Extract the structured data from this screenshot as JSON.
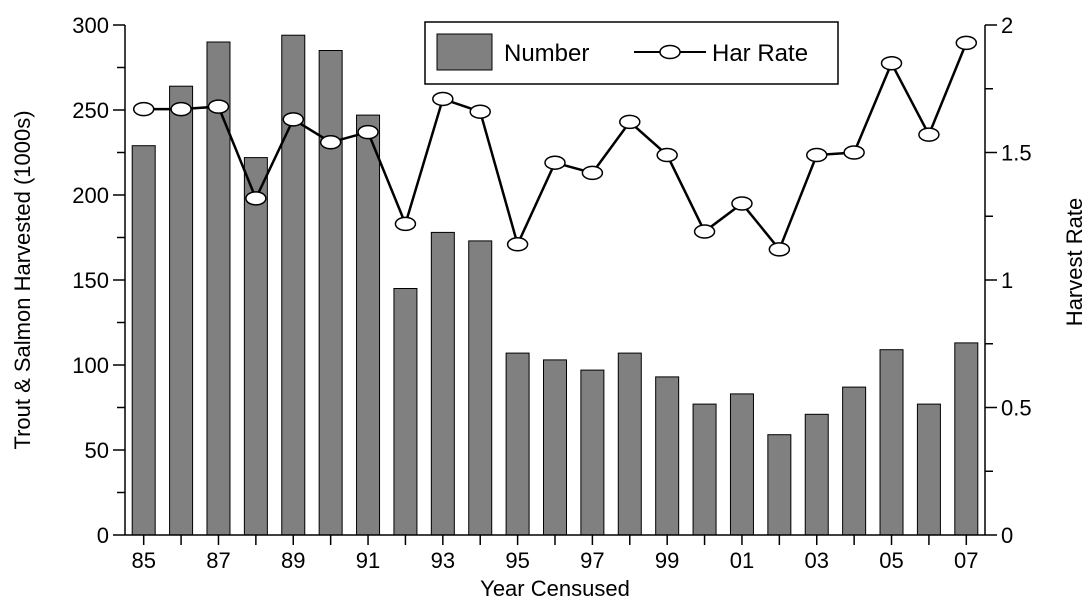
{
  "chart_data": {
    "type": "bar",
    "xlabel": "Year Censused",
    "ylabel": "Trout & Salmon Harvested (1000s)",
    "y2label": "Harvest Rate",
    "ylim": [
      0,
      300
    ],
    "y2lim": [
      0,
      2
    ],
    "yticks": [
      "0",
      "50",
      "100",
      "150",
      "200",
      "250",
      "300"
    ],
    "y2ticks": [
      "0",
      "0.5",
      "1",
      "1.5",
      "2"
    ],
    "categories": [
      "85",
      "86",
      "87",
      "88",
      "89",
      "90",
      "91",
      "92",
      "93",
      "94",
      "95",
      "96",
      "97",
      "98",
      "99",
      "00",
      "01",
      "02",
      "03",
      "04",
      "05",
      "06",
      "07"
    ],
    "xtick_labels": [
      "85",
      "87",
      "89",
      "91",
      "93",
      "95",
      "97",
      "99",
      "01",
      "03",
      "05",
      "07"
    ],
    "legend_position": "top-center",
    "colors": {
      "bar": "#808080",
      "line": "#000000",
      "marker_fill": "#ffffff"
    },
    "series": [
      {
        "name": "Number",
        "type": "bar",
        "axis": "left",
        "values": [
          229,
          264,
          290,
          222,
          294,
          285,
          247,
          145,
          178,
          173,
          107,
          103,
          97,
          107,
          93,
          77,
          83,
          59,
          71,
          87,
          109,
          77,
          113
        ]
      },
      {
        "name": "Har Rate",
        "type": "line",
        "axis": "right",
        "values": [
          1.67,
          1.67,
          1.68,
          1.32,
          1.63,
          1.54,
          1.58,
          1.22,
          1.71,
          1.66,
          1.14,
          1.46,
          1.42,
          1.62,
          1.49,
          1.19,
          1.3,
          1.12,
          1.49,
          1.5,
          1.85,
          1.57,
          1.93
        ]
      }
    ]
  }
}
